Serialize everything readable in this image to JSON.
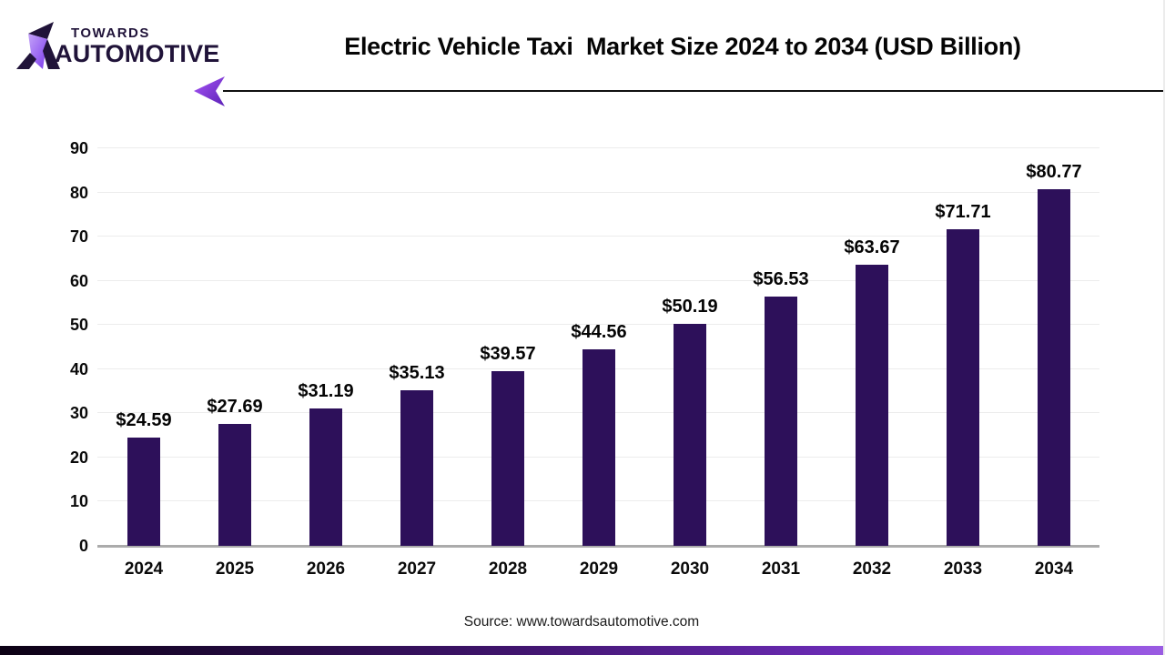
{
  "header": {
    "logo_line1": "TOWARDS",
    "logo_line2": "AUTOMOTIVE",
    "title": "Electric Vehicle Taxi  Market Size 2024 to 2034 (USD Billion)"
  },
  "footer": {
    "source": "Source: www.towardsautomotive.com"
  },
  "colors": {
    "bar": "#2D105A",
    "logo_text": "#201339",
    "accent_purple": "#7C3AED",
    "grid_line": "#ECECEC",
    "axis_line": "#ABABAB",
    "bottom_strip_left": "#0C0114",
    "bottom_strip_right": "#9A5CE2"
  },
  "chart_data": {
    "type": "bar",
    "title": "Electric Vehicle Taxi  Market Size 2024 to 2034 (USD Billion)",
    "xlabel": "",
    "ylabel": "",
    "categories": [
      "2024",
      "2025",
      "2026",
      "2027",
      "2028",
      "2029",
      "2030",
      "2031",
      "2032",
      "2033",
      "2034"
    ],
    "values": [
      24.59,
      27.69,
      31.19,
      35.13,
      39.57,
      44.56,
      50.19,
      56.53,
      63.67,
      71.71,
      80.77
    ],
    "value_labels": [
      "$24.59",
      "$27.69",
      "$31.19",
      "$35.13",
      "$39.57",
      "$44.56",
      "$50.19",
      "$56.53",
      "$63.67",
      "$71.71",
      "$80.77"
    ],
    "ylim": [
      0,
      90
    ],
    "ytick_step": 10,
    "yticks": [
      "0",
      "10",
      "20",
      "30",
      "40",
      "50",
      "60",
      "70",
      "80",
      "90"
    ],
    "grid": true,
    "legend": "none",
    "bar_color": "#2D105A"
  }
}
